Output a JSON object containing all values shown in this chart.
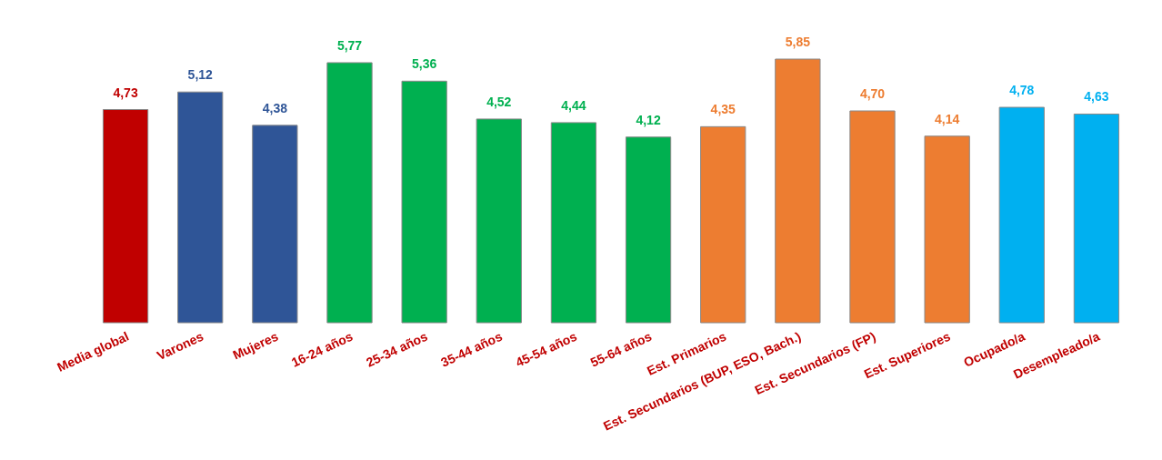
{
  "chart_data": {
    "type": "bar",
    "categories": [
      "Media global",
      "Varones",
      "Mujeres",
      "16-24 años",
      "25-34 años",
      "35-44 años",
      "45-54 años",
      "55-64 años",
      "Est. Primarios",
      "Est. Secundarios (BUP, ESO, Bach.)",
      "Est. Secundarios (FP)",
      "Est. Superiores",
      "Ocupado/a",
      "Desempleado/a"
    ],
    "values": [
      4.73,
      5.12,
      4.38,
      5.77,
      5.36,
      4.52,
      4.44,
      4.12,
      4.35,
      5.85,
      4.7,
      4.14,
      4.78,
      4.63
    ],
    "value_labels": [
      "4,73",
      "5,12",
      "4,38",
      "5,77",
      "5,36",
      "4,52",
      "4,44",
      "4,12",
      "4,35",
      "5,85",
      "4,70",
      "4,14",
      "4,78",
      "4,63"
    ],
    "colors": [
      "#c00000",
      "#2f5597",
      "#2f5597",
      "#00b050",
      "#00b050",
      "#00b050",
      "#00b050",
      "#00b050",
      "#ed7d31",
      "#ed7d31",
      "#ed7d31",
      "#ed7d31",
      "#00b0f0",
      "#00b0f0"
    ]
  }
}
